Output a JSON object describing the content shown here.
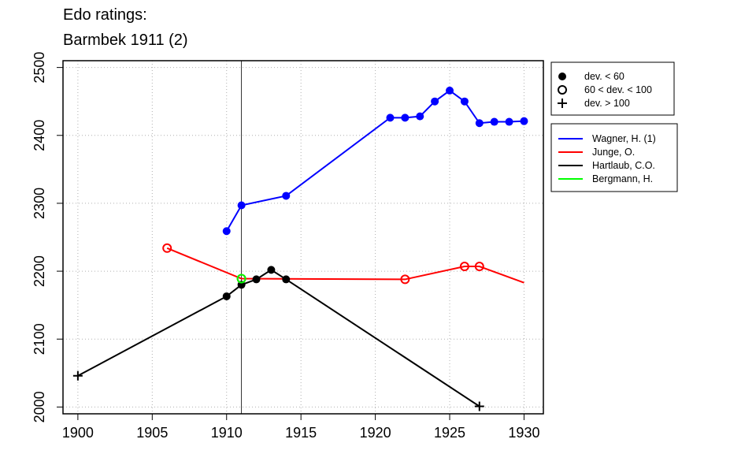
{
  "chart_data": {
    "type": "line",
    "title": "Edo ratings:",
    "subtitle": "Barmbek 1911 (2)",
    "xlabel": "",
    "ylabel": "",
    "xlim": [
      1899,
      1931.3
    ],
    "ylim": [
      1990,
      2510
    ],
    "x_ticks": [
      1900,
      1905,
      1910,
      1915,
      1920,
      1925,
      1930
    ],
    "y_ticks": [
      2000,
      2100,
      2200,
      2300,
      2400,
      2500
    ],
    "grid": true,
    "reference_line_x": 1911,
    "marker_legend": [
      {
        "marker": "filled",
        "label": "dev. < 60"
      },
      {
        "marker": "open",
        "label": "60 < dev. < 100"
      },
      {
        "marker": "plus",
        "label": "dev. > 100"
      }
    ],
    "series": [
      {
        "name": "Wagner, H. (1)",
        "color": "#0000ff",
        "points": [
          {
            "x": 1910,
            "y": 2259,
            "m": "filled"
          },
          {
            "x": 1911,
            "y": 2297,
            "m": "filled"
          },
          {
            "x": 1914,
            "y": 2311,
            "m": "filled"
          },
          {
            "x": 1921,
            "y": 2426,
            "m": "filled"
          },
          {
            "x": 1922,
            "y": 2426,
            "m": "filled"
          },
          {
            "x": 1923,
            "y": 2428,
            "m": "filled"
          },
          {
            "x": 1924,
            "y": 2450,
            "m": "filled"
          },
          {
            "x": 1925,
            "y": 2466,
            "m": "filled"
          },
          {
            "x": 1926,
            "y": 2450,
            "m": "filled"
          },
          {
            "x": 1927,
            "y": 2418,
            "m": "filled"
          },
          {
            "x": 1928,
            "y": 2420,
            "m": "filled"
          },
          {
            "x": 1929,
            "y": 2420,
            "m": "filled"
          },
          {
            "x": 1930,
            "y": 2421,
            "m": "filled"
          }
        ]
      },
      {
        "name": "Junge, O.",
        "color": "#ff0000",
        "points": [
          {
            "x": 1906,
            "y": 2234,
            "m": "open"
          },
          {
            "x": 1911,
            "y": 2189,
            "m": "open"
          },
          {
            "x": 1922,
            "y": 2188,
            "m": "open"
          },
          {
            "x": 1926,
            "y": 2207,
            "m": "open"
          },
          {
            "x": 1927,
            "y": 2207,
            "m": "open"
          },
          {
            "x": 1930,
            "y": 2183,
            "m": "none"
          }
        ]
      },
      {
        "name": "Hartlaub, C.O.",
        "color": "#000000",
        "points": [
          {
            "x": 1900,
            "y": 2046,
            "m": "plus"
          },
          {
            "x": 1910,
            "y": 2163,
            "m": "filled"
          },
          {
            "x": 1911,
            "y": 2180,
            "m": "filled"
          },
          {
            "x": 1912,
            "y": 2188,
            "m": "filled"
          },
          {
            "x": 1913,
            "y": 2202,
            "m": "filled"
          },
          {
            "x": 1914,
            "y": 2188,
            "m": "filled"
          },
          {
            "x": 1927,
            "y": 2001,
            "m": "plus"
          }
        ]
      },
      {
        "name": "Bergmann, H.",
        "color": "#00ff00",
        "points": [
          {
            "x": 1911,
            "y": 2189,
            "m": "open"
          }
        ]
      }
    ]
  }
}
